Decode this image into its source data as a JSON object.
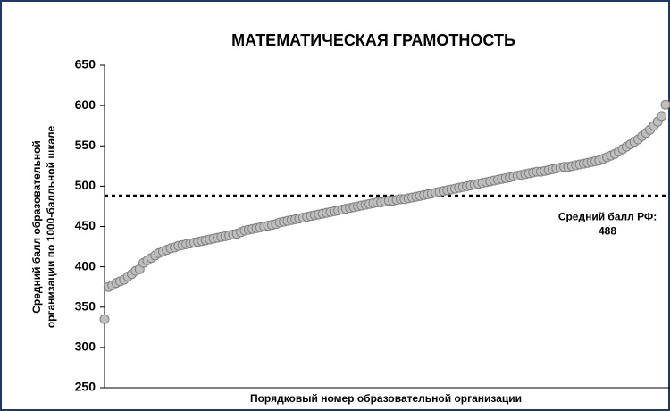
{
  "chart_data": {
    "type": "scatter",
    "title": "МАТЕМАТИЧЕСКАЯ ГРАМОТНОСТЬ",
    "ylabel": [
      "Средний балл образовательной",
      "организации по 1000-балльной шкале"
    ],
    "xlabel": "Порядковый номер образовательной организации",
    "ylim": [
      250,
      650
    ],
    "yticks": [
      250,
      300,
      350,
      400,
      450,
      500,
      550,
      600,
      650
    ],
    "color": "#bfbfbf",
    "reference": {
      "label": "Средний балл РФ:",
      "value": 488
    },
    "values": [
      335,
      375,
      377,
      380,
      382,
      384,
      388,
      391,
      395,
      397,
      405,
      408,
      411,
      414,
      417,
      419,
      421,
      423,
      424,
      426,
      427,
      428,
      429,
      430,
      431,
      432,
      433,
      434,
      435,
      436,
      437,
      438,
      439,
      440,
      441,
      443,
      445,
      446,
      447,
      448,
      449,
      450,
      451,
      452,
      453,
      455,
      456,
      457,
      458,
      459,
      460,
      461,
      462,
      463,
      464,
      465,
      466,
      467,
      468,
      469,
      470,
      471,
      472,
      473,
      474,
      475,
      476,
      477,
      478,
      479,
      480,
      480,
      481,
      482,
      482,
      483,
      484,
      484,
      485,
      486,
      487,
      488,
      489,
      490,
      491,
      492,
      493,
      494,
      495,
      496,
      497,
      498,
      499,
      500,
      501,
      502,
      503,
      504,
      505,
      506,
      507,
      508,
      509,
      510,
      511,
      512,
      513,
      514,
      515,
      516,
      517,
      518,
      518,
      519,
      520,
      521,
      522,
      523,
      524,
      524,
      525,
      526,
      527,
      528,
      529,
      530,
      531,
      532,
      534,
      536,
      538,
      540,
      543,
      546,
      549,
      552,
      555,
      558,
      562,
      566,
      570,
      575,
      580,
      587,
      601
    ]
  }
}
